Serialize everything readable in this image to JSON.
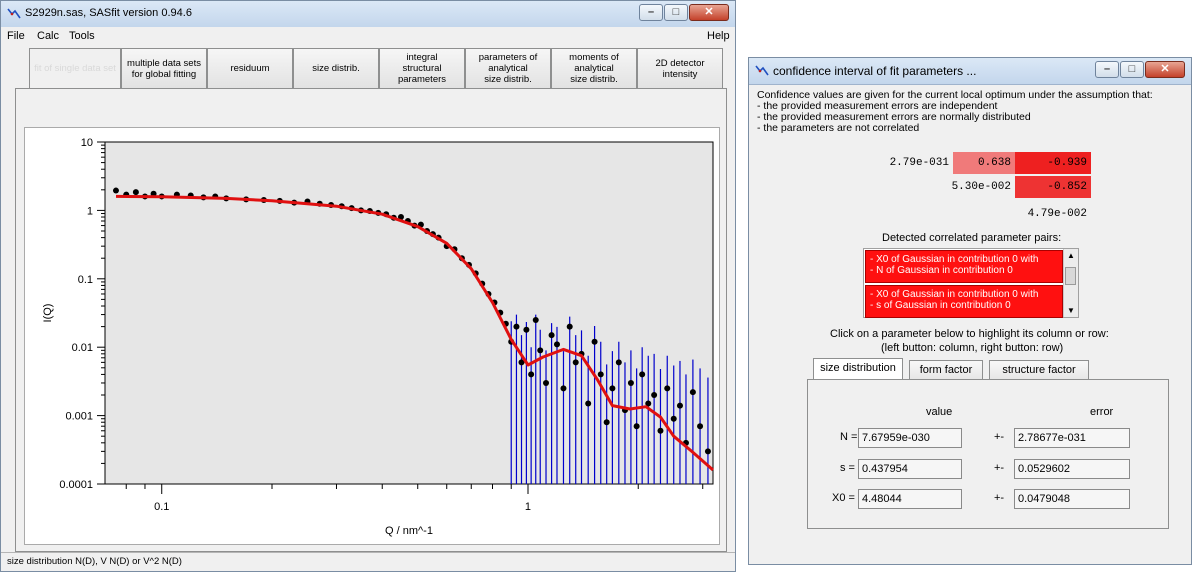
{
  "main_window": {
    "title": "S2929n.sas, SASfit version 0.94.6",
    "menu": {
      "file": "File",
      "calc": "Calc",
      "tools": "Tools",
      "help": "Help"
    },
    "tabs": [
      "fit of single data set",
      "multiple data sets\nfor global fitting",
      "residuum",
      "size distrib.",
      "integral\nstructural\nparameters",
      "parameters of\nanalytical\nsize distrib.",
      "moments of\nanalytical\nsize distrib.",
      "2D detector\nintensity"
    ],
    "status": "size distribution N(D), V N(D) or V^2 N(D)"
  },
  "chart_data": {
    "type": "scatter",
    "xlabel": "Q / nm^-1",
    "ylabel": "I(Q)",
    "xscale": "log",
    "yscale": "log",
    "xlim": [
      0.07,
      3.2
    ],
    "ylim": [
      0.0001,
      10
    ],
    "x_ticks": [
      "0.1",
      "1"
    ],
    "y_ticks": [
      "10",
      "1",
      "0.1",
      "0.01",
      "0.001",
      "0.0001"
    ],
    "colors": {
      "points": "#000000",
      "error_bars": "#0000cc",
      "fit": "#e01010",
      "background": "#e6e6e6"
    },
    "fit_curve": {
      "x": [
        0.075,
        0.1,
        0.15,
        0.2,
        0.3,
        0.4,
        0.5,
        0.6,
        0.7,
        0.8,
        0.9,
        1.0,
        1.1,
        1.25,
        1.4,
        1.55,
        1.7,
        1.9,
        2.1,
        2.3,
        2.5,
        2.8,
        3.2
      ],
      "y": [
        1.6,
        1.58,
        1.5,
        1.38,
        1.15,
        0.88,
        0.58,
        0.33,
        0.14,
        0.045,
        0.013,
        0.0055,
        0.0072,
        0.0093,
        0.0075,
        0.0033,
        0.0014,
        0.00125,
        0.00135,
        0.00095,
        0.0005,
        0.0003,
        0.00016
      ]
    },
    "data_points": {
      "x": [
        0.075,
        0.08,
        0.085,
        0.09,
        0.095,
        0.1,
        0.11,
        0.12,
        0.13,
        0.14,
        0.15,
        0.17,
        0.19,
        0.21,
        0.23,
        0.25,
        0.27,
        0.29,
        0.31,
        0.33,
        0.35,
        0.37,
        0.39,
        0.41,
        0.43,
        0.45,
        0.47,
        0.49,
        0.51,
        0.53,
        0.55,
        0.57,
        0.6,
        0.63,
        0.66,
        0.69,
        0.72,
        0.75,
        0.78,
        0.81,
        0.84,
        0.87,
        0.9,
        0.93,
        0.96,
        0.99,
        1.02,
        1.05,
        1.08,
        1.12,
        1.16,
        1.2,
        1.25,
        1.3,
        1.35,
        1.4,
        1.46,
        1.52,
        1.58,
        1.64,
        1.7,
        1.77,
        1.84,
        1.91,
        1.98,
        2.05,
        2.13,
        2.21,
        2.3,
        2.4,
        2.5,
        2.6,
        2.7,
        2.82,
        2.95,
        3.1
      ],
      "y": [
        1.95,
        1.7,
        1.85,
        1.6,
        1.75,
        1.6,
        1.7,
        1.65,
        1.55,
        1.6,
        1.5,
        1.45,
        1.42,
        1.38,
        1.3,
        1.35,
        1.25,
        1.2,
        1.15,
        1.08,
        1.0,
        0.98,
        0.92,
        0.88,
        0.78,
        0.8,
        0.7,
        0.6,
        0.62,
        0.5,
        0.45,
        0.4,
        0.3,
        0.27,
        0.2,
        0.16,
        0.12,
        0.085,
        0.06,
        0.045,
        0.032,
        0.022,
        0.012,
        0.02,
        0.006,
        0.018,
        0.004,
        0.025,
        0.009,
        0.003,
        0.015,
        0.011,
        0.0025,
        0.02,
        0.006,
        0.008,
        0.0015,
        0.012,
        0.004,
        0.0008,
        0.0025,
        0.006,
        0.0012,
        0.003,
        0.0007,
        0.004,
        0.0015,
        0.002,
        0.0006,
        0.0025,
        0.0009,
        0.0014,
        0.0004,
        0.0022,
        0.0007,
        0.0003
      ],
      "err_up": [
        1.0,
        1.0,
        1.0,
        1.0,
        1.0,
        1.0,
        1.0,
        1.0,
        1.0,
        1.0,
        1.0,
        1.0,
        1.0,
        1.0,
        1.0,
        1.0,
        1.0,
        1.0,
        1.0,
        1.0,
        1.0,
        1.0,
        1.0,
        1.0,
        1.0,
        1.0,
        1.0,
        1.0,
        1.0,
        1.0,
        1.0,
        1.0,
        1.0,
        1.0,
        1.0,
        1.0,
        1.0,
        1.0,
        1.0,
        1.0,
        1.0,
        1.0,
        2.0,
        1.5,
        2.5,
        1.3,
        2.5,
        1.2,
        2.0,
        3.0,
        1.5,
        1.8,
        3.5,
        1.4,
        2.5,
        2.2,
        5.0,
        1.7,
        3.0,
        7.0,
        3.5,
        2.0,
        5.0,
        3.0,
        7.0,
        2.5,
        5.0,
        4.0,
        8.0,
        3.0,
        6.0,
        4.5,
        10.0,
        3.0,
        7.0,
        12.0
      ],
      "err_down": [
        1.0,
        1.0,
        1.0,
        1.0,
        1.0,
        1.0,
        1.0,
        1.0,
        1.0,
        1.0,
        1.0,
        1.0,
        1.0,
        1.0,
        1.0,
        1.0,
        1.0,
        1.0,
        1.0,
        1.0,
        1.0,
        1.0,
        1.0,
        1.0,
        1.0,
        1.0,
        1.0,
        1.0,
        1.0,
        1.0,
        1.0,
        1.0,
        1.0,
        1.0,
        1.0,
        1.0,
        1.0,
        1.0,
        1.0,
        1.0,
        1.0,
        1.0,
        1000,
        1000,
        1000,
        1000,
        1000,
        1000,
        1000,
        1000,
        1000,
        1000,
        1000,
        1000,
        1000,
        1000,
        1000,
        1000,
        1000,
        1000,
        1000,
        1000,
        1000,
        1000,
        1000,
        1000,
        1000,
        1000,
        1000,
        1000,
        1000,
        1000,
        1000,
        1000,
        1000,
        1000
      ]
    }
  },
  "conf_window": {
    "title": "confidence interval of fit parameters ...",
    "intro_lines": [
      "Confidence values are given for the current local optimum under the assumption that:",
      "- the provided measurement errors are independent",
      "- the provided measurement errors are normally distributed",
      "- the parameters are not correlated"
    ],
    "matrix": {
      "r0": [
        "2.79e-031",
        "0.638",
        "-0.939"
      ],
      "r1": [
        "5.30e-002",
        "-0.852"
      ],
      "r2": [
        "4.79e-002"
      ]
    },
    "correlated_label": "Detected correlated parameter pairs:",
    "pairs": [
      "- X0 of Gaussian in contribution 0 with\n- N of Gaussian in contribution 0",
      "- X0 of Gaussian in contribution 0 with\n- s of Gaussian in contribution 0"
    ],
    "hint1": "Click on a parameter below to highlight its column or row:",
    "hint2": "(left button: column, right button: row)",
    "tabs": [
      "size distribution",
      "form factor",
      "structure factor"
    ],
    "col_value": "value",
    "col_error": "error",
    "params": [
      {
        "name": "N =",
        "value": "7.67959e-030",
        "pm": "+-",
        "error": "2.78677e-031"
      },
      {
        "name": "s =",
        "value": "0.437954",
        "pm": "+-",
        "error": "0.0529602"
      },
      {
        "name": "X0 =",
        "value": "4.48044",
        "pm": "+-",
        "error": "0.0479048"
      }
    ]
  }
}
